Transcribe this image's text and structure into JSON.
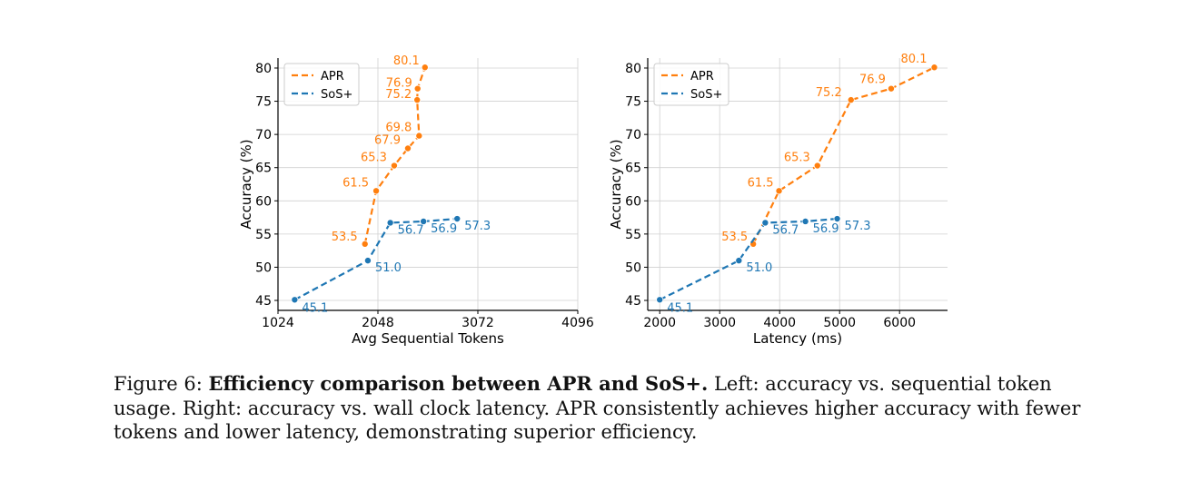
{
  "chart_data": [
    {
      "type": "line",
      "xlabel": "Avg Sequential Tokens",
      "ylabel": "Accuracy (%)",
      "xlim": [
        1024,
        4096
      ],
      "ylim": [
        43.5,
        81.5
      ],
      "xticks": [
        1024,
        2048,
        3072,
        4096
      ],
      "yticks": [
        45,
        50,
        55,
        60,
        65,
        70,
        75,
        80
      ],
      "grid": true,
      "legend": "top-left",
      "series": [
        {
          "name": "APR",
          "color": "#ff7f0e",
          "x": [
            1915,
            2030,
            2215,
            2355,
            2470,
            2450,
            2455,
            2530
          ],
          "y": [
            53.5,
            61.5,
            65.3,
            67.9,
            69.8,
            75.2,
            76.9,
            80.1
          ],
          "labels": [
            "53.5",
            "61.5",
            "65.3",
            "67.9",
            "69.8",
            "75.2",
            "76.9",
            "80.1"
          ]
        },
        {
          "name": "SoS+",
          "color": "#1f77b4",
          "x": [
            1195,
            1945,
            2175,
            2515,
            2860
          ],
          "y": [
            45.1,
            51.0,
            56.7,
            56.9,
            57.3
          ],
          "labels": [
            "45.1",
            "51.0",
            "56.7",
            "56.9",
            "57.3"
          ]
        }
      ]
    },
    {
      "type": "line",
      "xlabel": "Latency (ms)",
      "ylabel": "Accuracy (%)",
      "xlim": [
        1800,
        6800
      ],
      "ylim": [
        43.5,
        81.5
      ],
      "xticks": [
        2000,
        3000,
        4000,
        5000,
        6000
      ],
      "yticks": [
        45,
        50,
        55,
        60,
        65,
        70,
        75,
        80
      ],
      "grid": true,
      "legend": "top-left",
      "series": [
        {
          "name": "APR",
          "color": "#ff7f0e",
          "x": [
            3560,
            3990,
            4630,
            5190,
            5860,
            6580
          ],
          "y": [
            53.5,
            61.5,
            65.3,
            75.2,
            76.9,
            80.1
          ],
          "labels": [
            "53.5",
            "61.5",
            "65.3",
            "75.2",
            "76.9",
            "80.1"
          ]
        },
        {
          "name": "SoS+",
          "color": "#1f77b4",
          "x": [
            2000,
            3320,
            3760,
            4430,
            4960
          ],
          "y": [
            45.1,
            51.0,
            56.7,
            56.9,
            57.3
          ],
          "labels": [
            "45.1",
            "51.0",
            "56.7",
            "56.9",
            "57.3"
          ]
        }
      ]
    }
  ],
  "caption": {
    "prefix": "Figure 6: ",
    "bold": "Efficiency comparison between APR and SoS+.",
    "rest": " Left: accuracy vs. sequential token usage. Right: accuracy vs. wall clock latency. APR consistently achieves higher accuracy with fewer tokens and lower latency, demonstrating superior efficiency."
  }
}
